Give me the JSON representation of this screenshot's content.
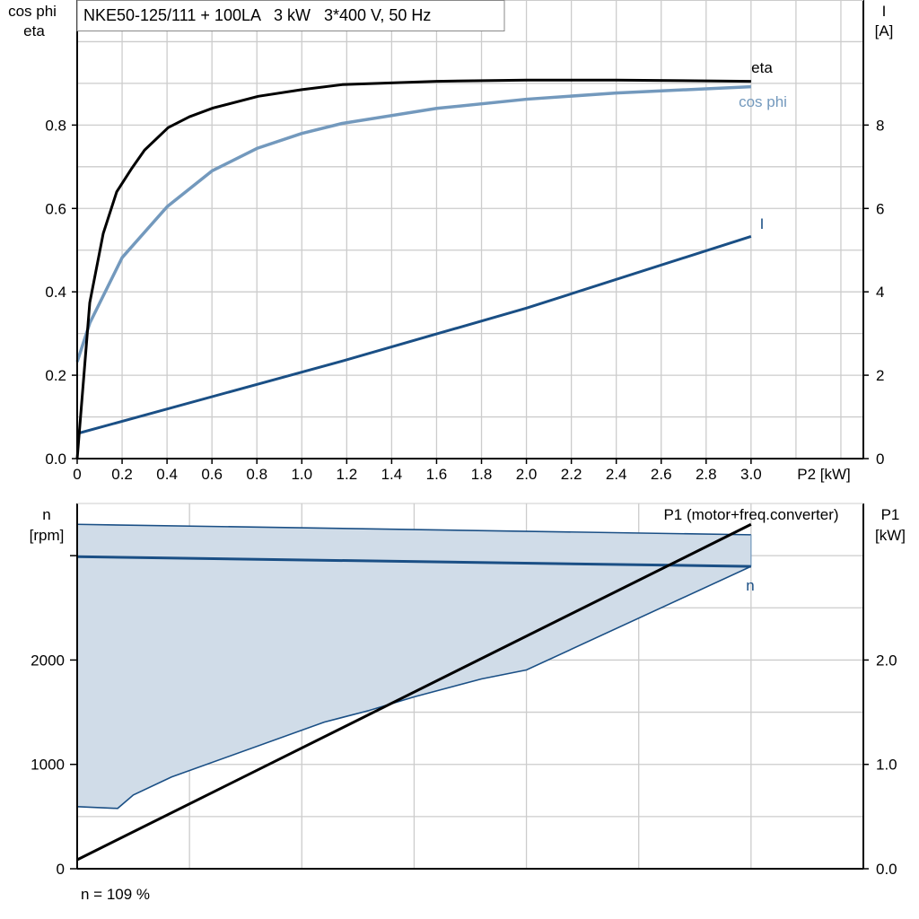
{
  "chart_data": [
    {
      "type": "line",
      "title": "NKE50-125/111 + 100LA   3 kW   3*400 V, 50 Hz",
      "xlabel": "P2 [kW]",
      "ylabel_left": [
        "cos phi",
        "eta"
      ],
      "ylabel_right": [
        "I",
        "[A]"
      ],
      "xlim": [
        0,
        3.5
      ],
      "ylim_left": [
        0,
        1.1
      ],
      "ylim_right": [
        0,
        11
      ],
      "x_ticks": [
        "0",
        "0.2",
        "0.4",
        "0.6",
        "0.8",
        "1.0",
        "1.2",
        "1.4",
        "1.6",
        "1.8",
        "2.0",
        "2.2",
        "2.4",
        "2.6",
        "2.8",
        "3.0"
      ],
      "y_ticks_left": [
        "0.0",
        "0.2",
        "0.4",
        "0.6",
        "0.8"
      ],
      "y_ticks_right": [
        "0",
        "2",
        "4",
        "6",
        "8"
      ],
      "grid": true,
      "series": [
        {
          "name": "eta",
          "axis": "left",
          "color": "#000000",
          "x": [
            0,
            0.056,
            0.116,
            0.176,
            0.244,
            0.3,
            0.405,
            0.5,
            0.605,
            0.806,
            1.0,
            1.18,
            1.6,
            2.0,
            2.4,
            3.0
          ],
          "y": [
            0,
            0.374,
            0.54,
            0.64,
            0.697,
            0.74,
            0.794,
            0.82,
            0.841,
            0.869,
            0.885,
            0.897,
            0.905,
            0.908,
            0.908,
            0.905
          ]
        },
        {
          "name": "cos phi",
          "axis": "left",
          "color": "#7399bd",
          "x": [
            0,
            0.056,
            0.2,
            0.4,
            0.6,
            0.8,
            1.0,
            1.18,
            1.6,
            2.0,
            2.4,
            3.0
          ],
          "y": [
            0.232,
            0.325,
            0.482,
            0.604,
            0.69,
            0.744,
            0.78,
            0.804,
            0.84,
            0.862,
            0.877,
            0.892
          ]
        },
        {
          "name": "I",
          "axis": "right",
          "color": "#1a4f85",
          "x": [
            0,
            1.18,
            2.0,
            3.0
          ],
          "y": [
            0.6,
            2.34,
            3.61,
            5.33
          ]
        }
      ]
    },
    {
      "type": "area",
      "ylabel_left": [
        "n",
        "[rpm]"
      ],
      "ylabel_right": [
        "P1",
        "[kW]"
      ],
      "xlim": [
        0,
        3.5
      ],
      "ylim_left": [
        0,
        3500
      ],
      "ylim_right": [
        0,
        3.5
      ],
      "y_ticks_left": [
        "0",
        "1000",
        "2000"
      ],
      "y_ticks_right": [
        "0.0",
        "1.0",
        "2.0"
      ],
      "grid": true,
      "annotation": "n = 109 %",
      "band": {
        "color": "#d0dce8",
        "edge_color": "#1a4f85",
        "upper": {
          "x": [
            0,
            3.0
          ],
          "y": [
            3300,
            3200
          ]
        },
        "lower": {
          "x": [
            0,
            0.18,
            0.25,
            0.42,
            1.1,
            1.3,
            1.5,
            1.8,
            2.0,
            3.0
          ],
          "y": [
            595,
            578,
            707,
            879,
            1405,
            1517,
            1647,
            1819,
            1905,
            2897
          ]
        }
      },
      "series": [
        {
          "name": "n",
          "axis": "left",
          "color": "#1a4f85",
          "x": [
            0,
            3.0
          ],
          "y": [
            2990,
            2897
          ]
        },
        {
          "name": "P1 (motor+freq.converter)",
          "axis": "right",
          "color": "#000000",
          "x": [
            0,
            3.0
          ],
          "y": [
            0.086,
            3.3
          ]
        }
      ]
    }
  ]
}
